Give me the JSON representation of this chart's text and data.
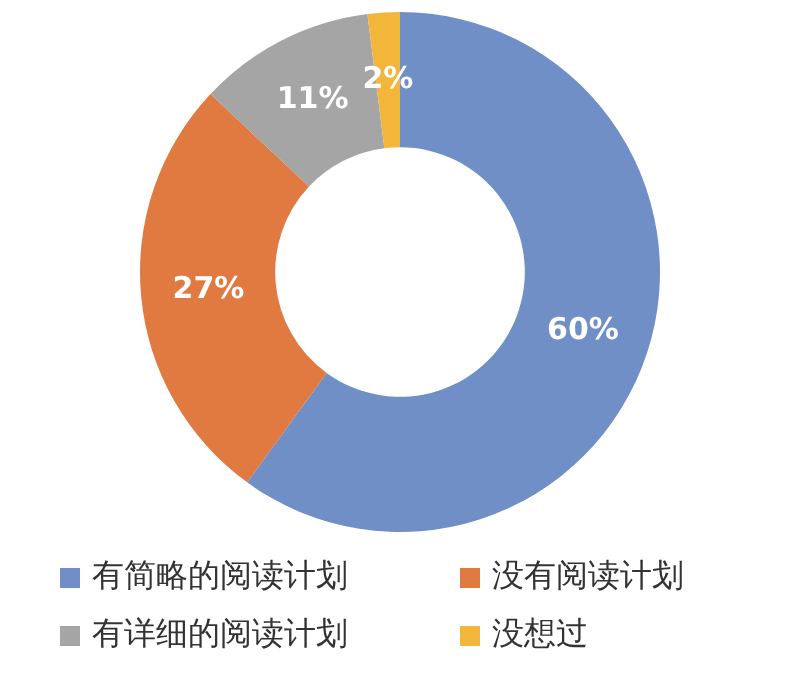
{
  "chart_data": {
    "type": "donut",
    "categories": [
      "有简略的阅读计划",
      "没有阅读计划",
      "有详细的阅读计划",
      "没想过"
    ],
    "values": [
      60,
      27,
      11,
      2
    ],
    "colors": [
      "#6f8fc6",
      "#e07a40",
      "#a5a5a5",
      "#f2b63a"
    ],
    "value_labels": [
      "60%",
      "27%",
      "11%",
      "2%"
    ],
    "legend": "bottom"
  }
}
